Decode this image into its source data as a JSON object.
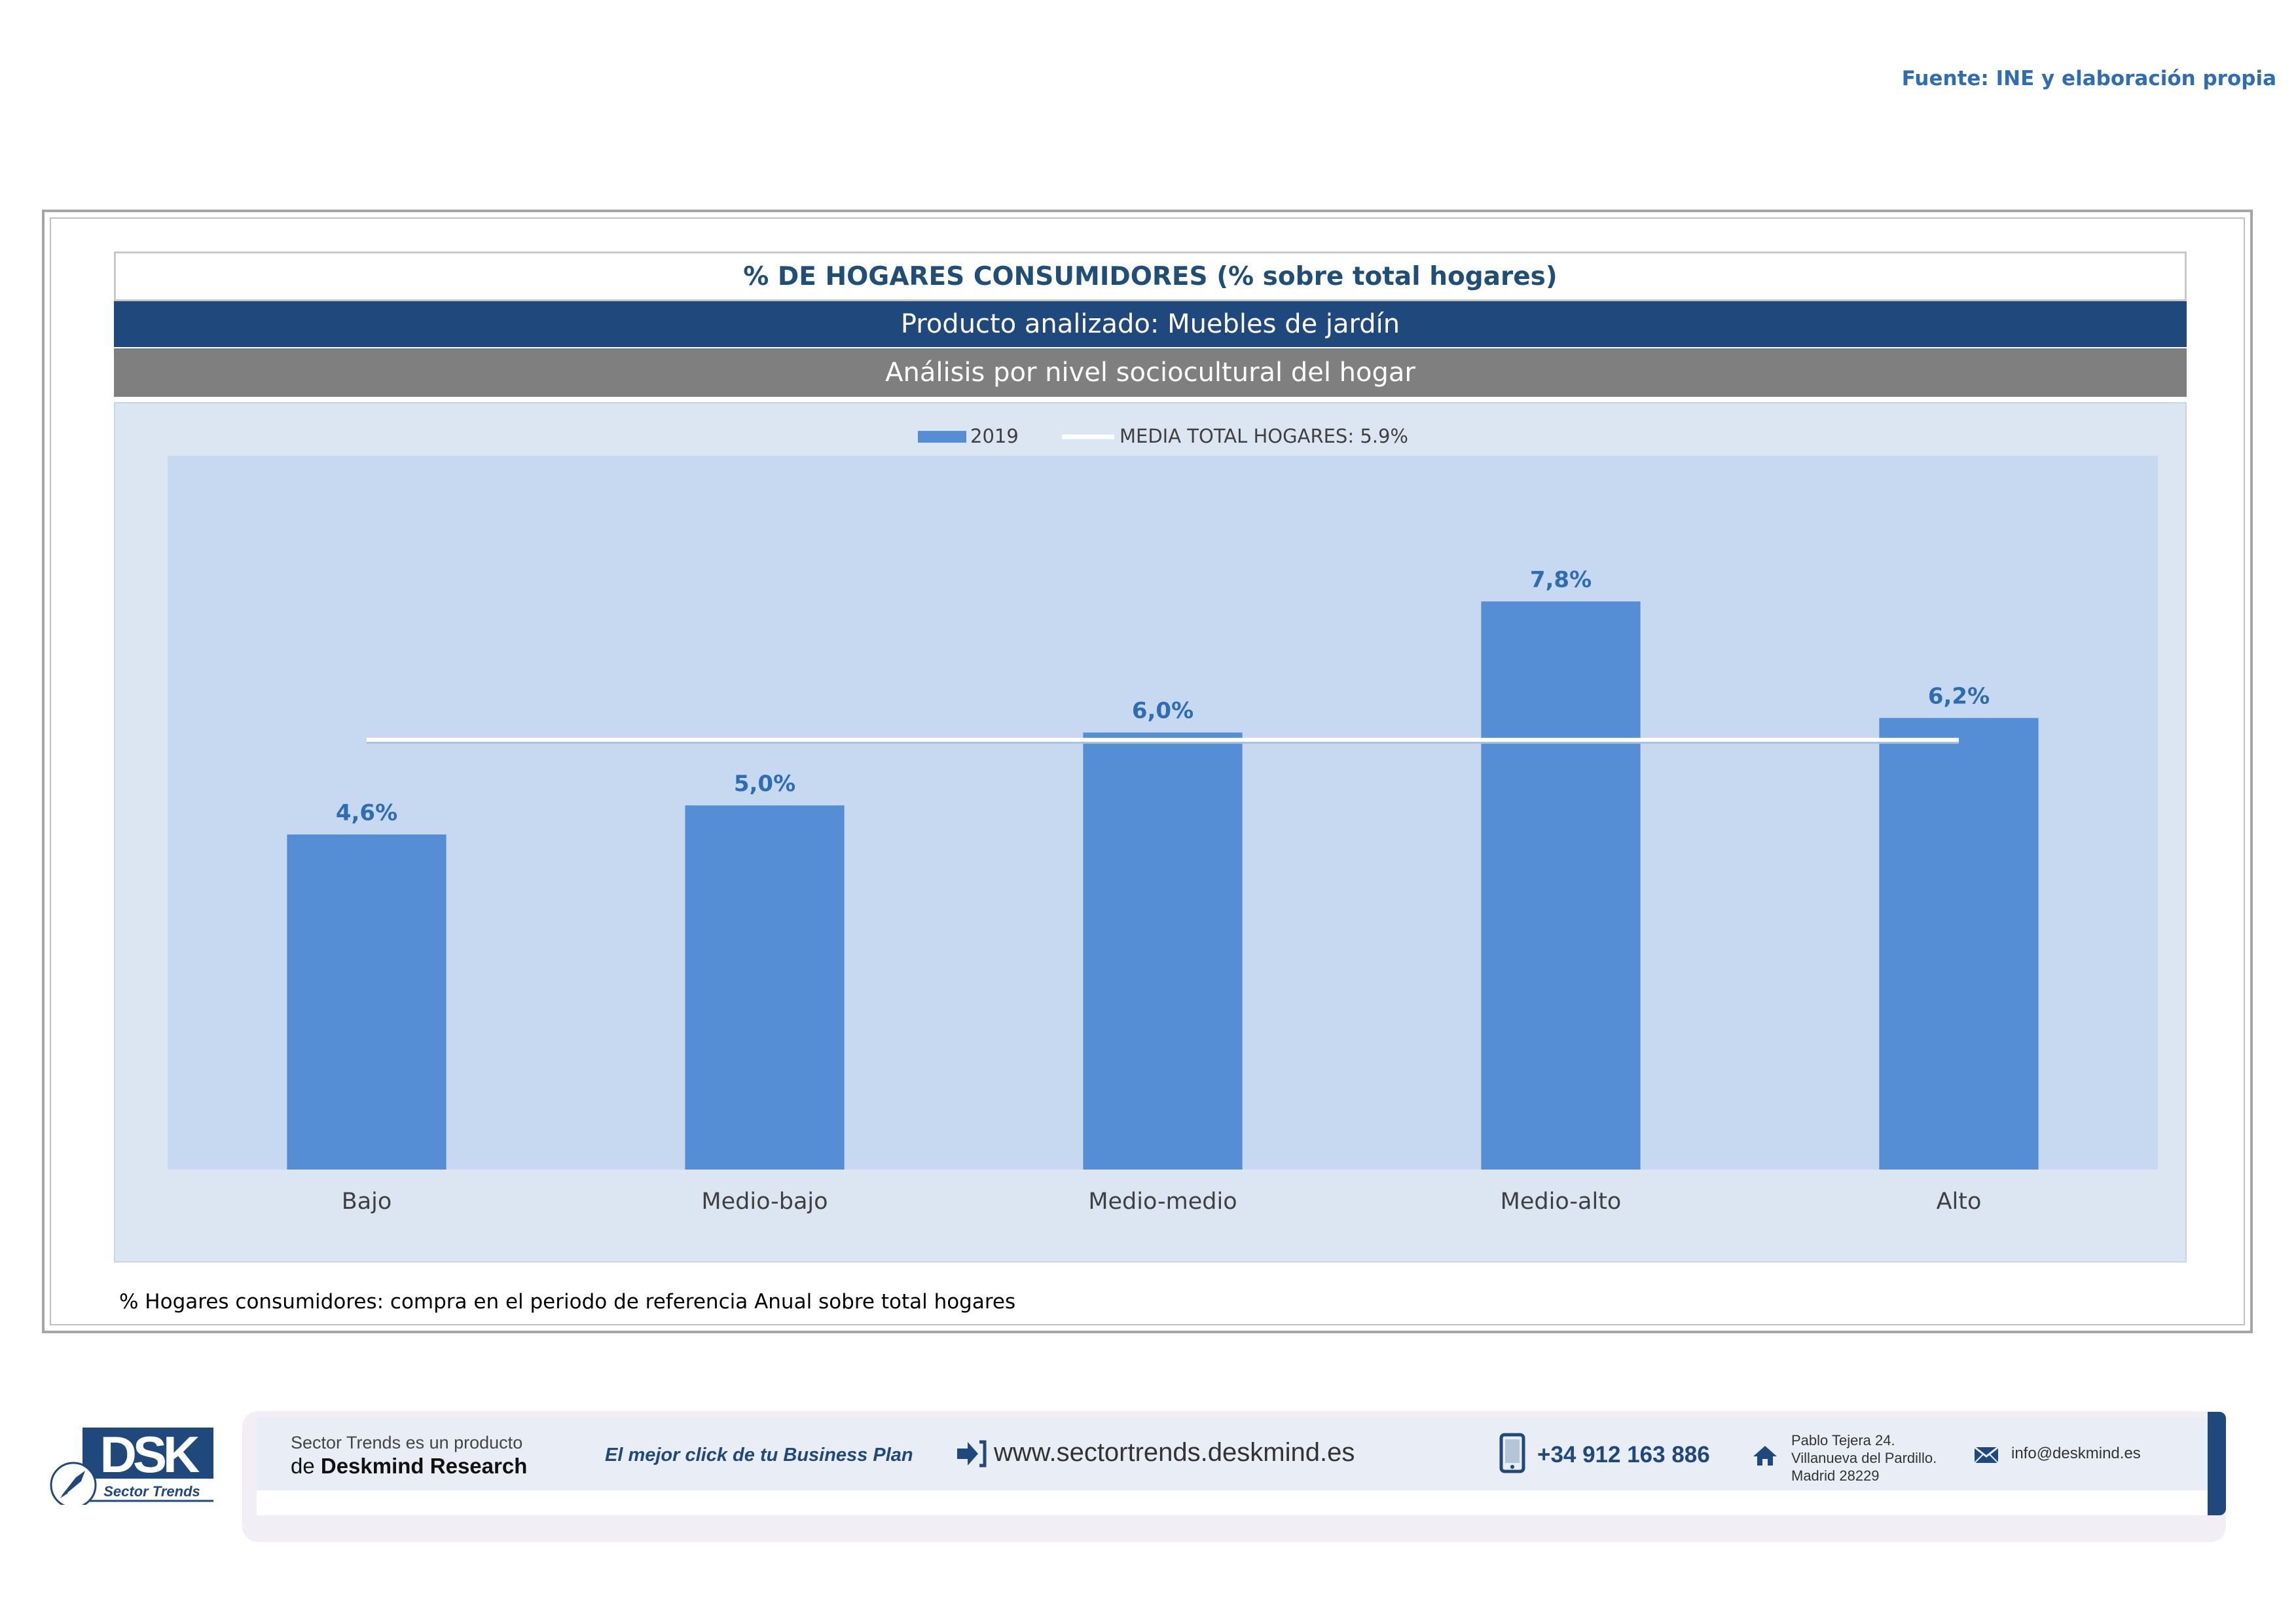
{
  "header": {
    "source": "Fuente: INE y elaboración propia",
    "title": "% DE HOGARES CONSUMIDORES (% sobre total hogares)",
    "product": "Producto analizado: Muebles de jardín",
    "analysis": "Análisis por nivel sociocultural del hogar"
  },
  "chart_data": {
    "type": "bar",
    "categories": [
      "Bajo",
      "Medio-bajo",
      "Medio-medio",
      "Medio-alto",
      "Alto"
    ],
    "series": [
      {
        "name": "2019",
        "values": [
          4.6,
          5.0,
          6.0,
          7.8,
          6.2
        ],
        "color": "#558ed5"
      }
    ],
    "data_labels": [
      "4,6%",
      "5,0%",
      "6,0%",
      "7,8%",
      "6,2%"
    ],
    "reference_line": {
      "name": "MEDIA TOTAL  HOGARES:  5.9%",
      "value": 5.9,
      "color": "#ffffff"
    },
    "legend": [
      "2019",
      "MEDIA TOTAL  HOGARES:  5.9%"
    ],
    "legend_position": "top",
    "ylim": [
      0,
      9.8
    ],
    "grid": false,
    "title": "",
    "xlabel": "",
    "ylabel": ""
  },
  "footnote": "% Hogares consumidores: compra en el periodo de referencia Anual sobre total hogares",
  "footer": {
    "logo_text": "DSK",
    "logo_subtitle": "Sector Trends",
    "product_line1": "Sector Trends es un producto",
    "product_line2_prefix": "de ",
    "product_line2_brand": "Deskmind Research",
    "slogan": "El mejor click de tu Business Plan",
    "website": "www.sectortrends.deskmind.es",
    "phone": "+34 912 163 886",
    "address_line1": "Pablo Tejera 24.",
    "address_line2": "Villanueva del Pardillo.",
    "address_line3": "Madrid 28229",
    "email": "info@deskmind.es",
    "brand_color": "#1f497d"
  }
}
